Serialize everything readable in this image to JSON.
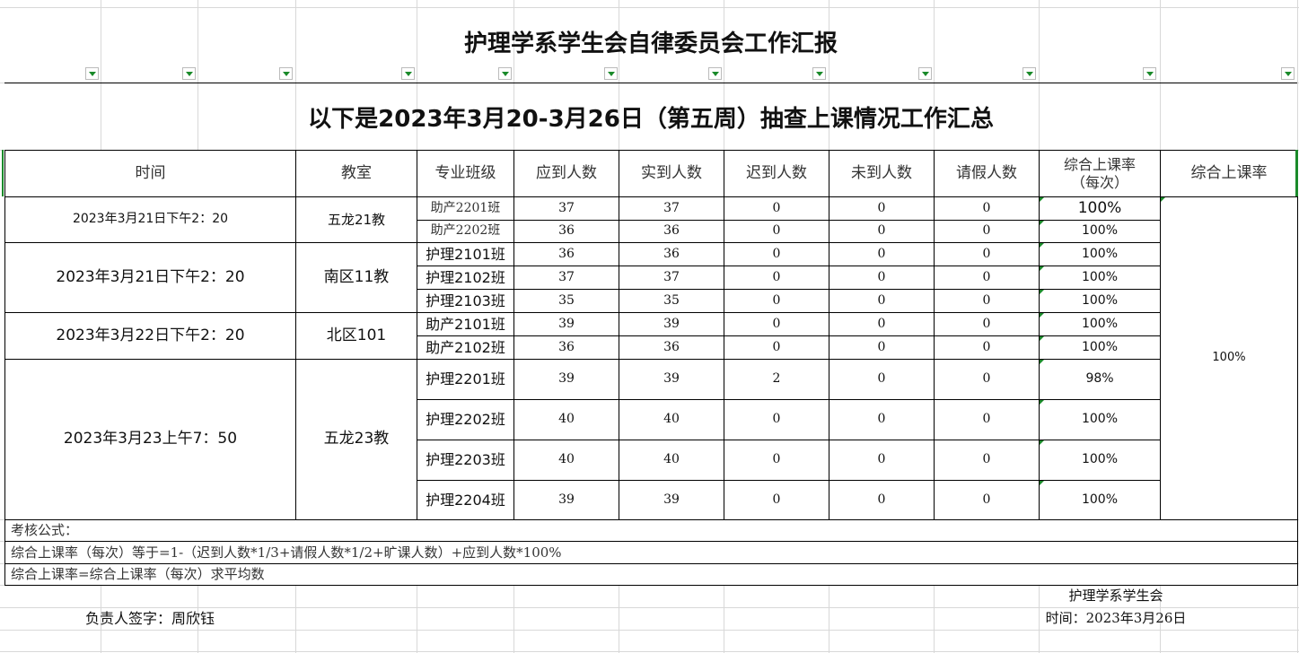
{
  "title": "护理学系学生会自律委员会工作汇报",
  "subtitle": "以下是2023年3月20-3月26日（第五周）抽查上课情况工作汇总",
  "headers": [
    "时间",
    "教室",
    "专业班级",
    "应到人数",
    "实到人数",
    "迟到人数",
    "未到人数",
    "请假人数",
    "综合上课率（每次）",
    "综合上课率"
  ],
  "groups": [
    {
      "time": "2023年3月21日下午2：20",
      "room": "五龙21教"
    },
    {
      "time": "2023年3月21日下午2：20",
      "room": "南区11教"
    },
    {
      "time": "2023年3月22日下午2：20",
      "room": "北区101"
    },
    {
      "time": "2023年3月23上午7：50",
      "room": "五龙23教"
    }
  ],
  "rows": [
    {
      "class": "助产2201班",
      "expected": "37",
      "present": "37",
      "late": "0",
      "absent": "0",
      "leave": "0",
      "rate": "100%"
    },
    {
      "class": "助产2202班",
      "expected": "36",
      "present": "36",
      "late": "0",
      "absent": "0",
      "leave": "0",
      "rate": "100%"
    },
    {
      "class": "护理2101班",
      "expected": "36",
      "present": "36",
      "late": "0",
      "absent": "0",
      "leave": "0",
      "rate": "100%"
    },
    {
      "class": "护理2102班",
      "expected": "37",
      "present": "37",
      "late": "0",
      "absent": "0",
      "leave": "0",
      "rate": "100%"
    },
    {
      "class": "护理2103班",
      "expected": "35",
      "present": "35",
      "late": "0",
      "absent": "0",
      "leave": "0",
      "rate": "100%"
    },
    {
      "class": "助产2101班",
      "expected": "39",
      "present": "39",
      "late": "0",
      "absent": "0",
      "leave": "0",
      "rate": "100%"
    },
    {
      "class": "助产2102班",
      "expected": "36",
      "present": "36",
      "late": "0",
      "absent": "0",
      "leave": "0",
      "rate": "100%"
    },
    {
      "class": "护理2201班",
      "expected": "39",
      "present": "39",
      "late": "2",
      "absent": "0",
      "leave": "0",
      "rate": "98%"
    },
    {
      "class": "护理2202班",
      "expected": "40",
      "present": "40",
      "late": "0",
      "absent": "0",
      "leave": "0",
      "rate": "100%"
    },
    {
      "class": "护理2203班",
      "expected": "40",
      "present": "40",
      "late": "0",
      "absent": "0",
      "leave": "0",
      "rate": "100%"
    },
    {
      "class": "护理2204班",
      "expected": "39",
      "present": "39",
      "late": "0",
      "absent": "0",
      "leave": "0",
      "rate": "100%"
    }
  ],
  "overall_rate": "100%",
  "notes": [
    "考核公式：",
    "综合上课率（每次）等于=1-（迟到人数*1/3+请假人数*1/2+旷课人数）+应到人数*100%",
    "综合上课率=综合上课率（每次）求平均数"
  ],
  "footer": {
    "org": "护理学系学生会",
    "signature": "负责人签字：周欣钰",
    "date": "时间：2023年3月26日"
  },
  "colors": {
    "accent": "#1a8a2a"
  }
}
